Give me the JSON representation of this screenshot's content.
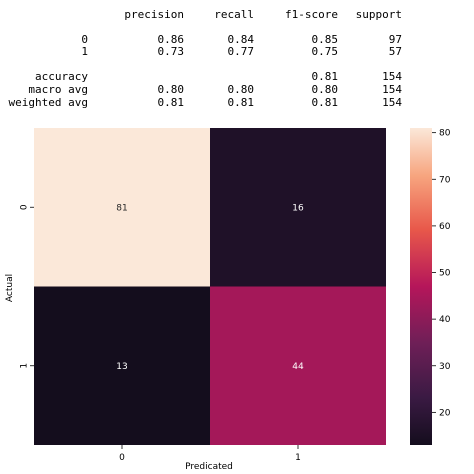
{
  "report": {
    "header": [
      "precision",
      "recall",
      "f1-score",
      "support"
    ],
    "rows": [
      {
        "label": "0",
        "precision": "0.86",
        "recall": "0.84",
        "f1": "0.85",
        "support": "97"
      },
      {
        "label": "1",
        "precision": "0.73",
        "recall": "0.77",
        "f1": "0.75",
        "support": "57"
      },
      {
        "label": "accuracy",
        "precision": "",
        "recall": "",
        "f1": "0.81",
        "support": "154"
      },
      {
        "label": "macro avg",
        "precision": "0.80",
        "recall": "0.80",
        "f1": "0.80",
        "support": "154"
      },
      {
        "label": "weighted avg",
        "precision": "0.81",
        "recall": "0.81",
        "f1": "0.81",
        "support": "154"
      }
    ]
  },
  "chart_data": {
    "type": "heatmap",
    "xlabel": "Predicated",
    "ylabel": "Actual",
    "x_categories": [
      "0",
      "1"
    ],
    "y_categories": [
      "0",
      "1"
    ],
    "values": [
      [
        81,
        16
      ],
      [
        13,
        44
      ]
    ],
    "colorbar": {
      "min": 13,
      "max": 81,
      "ticks": [
        20,
        30,
        40,
        50,
        60,
        70,
        80
      ]
    },
    "colors": {
      "low": "#140d1d",
      "mid": "#b5165a",
      "high": "#fbe8d9"
    },
    "label_colors": {
      "light_cell": "#262626",
      "dark_cell": "#ffffff"
    }
  }
}
